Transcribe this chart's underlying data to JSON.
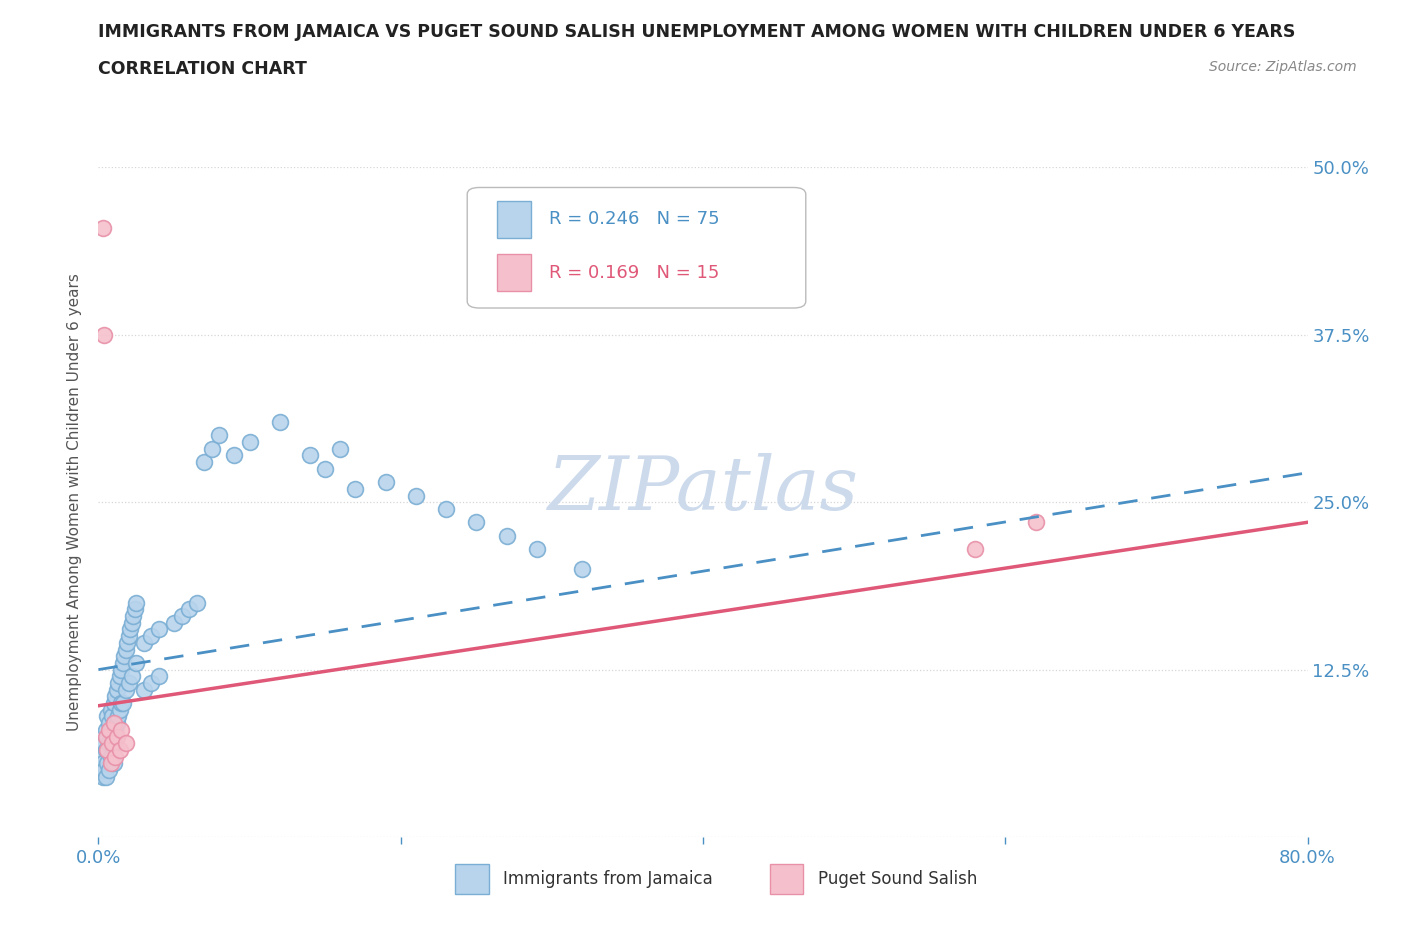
{
  "title_line1": "IMMIGRANTS FROM JAMAICA VS PUGET SOUND SALISH UNEMPLOYMENT AMONG WOMEN WITH CHILDREN UNDER 6 YEARS",
  "title_line2": "CORRELATION CHART",
  "source_text": "Source: ZipAtlas.com",
  "ylabel": "Unemployment Among Women with Children Under 6 years",
  "xlim": [
    0.0,
    0.8
  ],
  "ylim": [
    0.0,
    0.5
  ],
  "r_jamaica": 0.246,
  "n_jamaica": 75,
  "r_salish": 0.169,
  "n_salish": 15,
  "blue_edge": "#7aaed4",
  "blue_fill": "#b8d4ec",
  "pink_edge": "#e890a8",
  "pink_fill": "#f5c0cc",
  "trendline_blue": "#4a90c4",
  "trendline_pink": "#e05878",
  "grid_color": "#cccccc",
  "watermark_color": "#ccdaec",
  "background_color": "#ffffff",
  "title_color": "#222222",
  "axis_color": "#4a90c4",
  "blue_x": [
    0.002,
    0.003,
    0.003,
    0.004,
    0.004,
    0.005,
    0.005,
    0.005,
    0.006,
    0.006,
    0.006,
    0.007,
    0.007,
    0.007,
    0.008,
    0.008,
    0.008,
    0.009,
    0.009,
    0.01,
    0.01,
    0.01,
    0.01,
    0.011,
    0.011,
    0.012,
    0.012,
    0.013,
    0.013,
    0.014,
    0.014,
    0.015,
    0.015,
    0.016,
    0.016,
    0.017,
    0.018,
    0.018,
    0.019,
    0.02,
    0.02,
    0.021,
    0.022,
    0.022,
    0.023,
    0.024,
    0.025,
    0.025,
    0.03,
    0.03,
    0.035,
    0.035,
    0.04,
    0.04,
    0.05,
    0.055,
    0.06,
    0.065,
    0.07,
    0.075,
    0.08,
    0.09,
    0.1,
    0.12,
    0.14,
    0.15,
    0.16,
    0.17,
    0.19,
    0.21,
    0.23,
    0.25,
    0.27,
    0.29,
    0.32
  ],
  "blue_y": [
    0.06,
    0.055,
    0.045,
    0.07,
    0.05,
    0.08,
    0.065,
    0.045,
    0.09,
    0.075,
    0.055,
    0.085,
    0.07,
    0.05,
    0.095,
    0.08,
    0.06,
    0.09,
    0.07,
    0.1,
    0.085,
    0.07,
    0.055,
    0.105,
    0.08,
    0.11,
    0.085,
    0.115,
    0.09,
    0.12,
    0.095,
    0.125,
    0.1,
    0.13,
    0.1,
    0.135,
    0.14,
    0.11,
    0.145,
    0.15,
    0.115,
    0.155,
    0.16,
    0.12,
    0.165,
    0.17,
    0.175,
    0.13,
    0.145,
    0.11,
    0.15,
    0.115,
    0.155,
    0.12,
    0.16,
    0.165,
    0.17,
    0.175,
    0.28,
    0.29,
    0.3,
    0.285,
    0.295,
    0.31,
    0.285,
    0.275,
    0.29,
    0.26,
    0.265,
    0.255,
    0.245,
    0.235,
    0.225,
    0.215,
    0.2
  ],
  "pink_x": [
    0.003,
    0.004,
    0.005,
    0.006,
    0.007,
    0.008,
    0.009,
    0.01,
    0.011,
    0.012,
    0.014,
    0.015,
    0.018,
    0.58,
    0.62
  ],
  "pink_y": [
    0.455,
    0.375,
    0.075,
    0.065,
    0.08,
    0.055,
    0.07,
    0.085,
    0.06,
    0.075,
    0.065,
    0.08,
    0.07,
    0.215,
    0.235
  ],
  "blue_trend_x0": 0.0,
  "blue_trend_y0": 0.125,
  "blue_trend_x1": 0.8,
  "blue_trend_y1": 0.272,
  "pink_trend_x0": 0.0,
  "pink_trend_y0": 0.098,
  "pink_trend_x1": 0.8,
  "pink_trend_y1": 0.235
}
